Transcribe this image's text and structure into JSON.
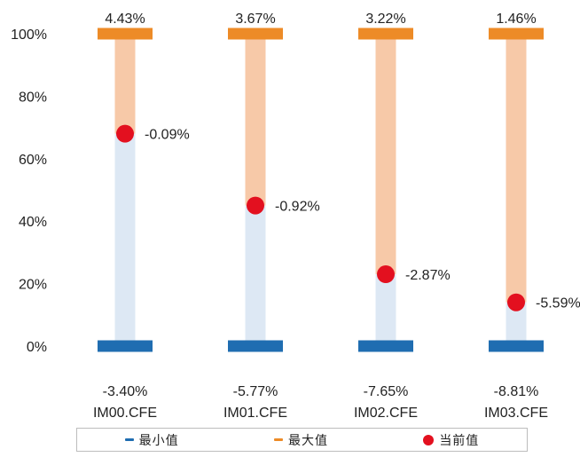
{
  "chart_data": {
    "type": "range-dot",
    "title": "",
    "xlabel": "",
    "ylabel": "",
    "ylim": [
      0,
      100
    ],
    "y_ticks": [
      "0%",
      "20%",
      "40%",
      "60%",
      "80%",
      "100%"
    ],
    "y_tick_values": [
      0,
      20,
      40,
      60,
      80,
      100
    ],
    "categories": [
      "IM00.CFE",
      "IM01.CFE",
      "IM02.CFE",
      "IM03.CFE"
    ],
    "series": [
      {
        "name": "最小值",
        "labels": [
          "-3.40%",
          "-5.77%",
          "-7.65%",
          "-8.81%"
        ],
        "position_pct": [
          0,
          0,
          0,
          0
        ]
      },
      {
        "name": "最大值",
        "labels": [
          "4.43%",
          "3.67%",
          "3.22%",
          "1.46%"
        ],
        "position_pct": [
          100,
          100,
          100,
          100
        ]
      },
      {
        "name": "当前值",
        "labels": [
          "-0.09%",
          "-0.92%",
          "-2.87%",
          "-5.59%"
        ],
        "position_pct": [
          68,
          45,
          23,
          14
        ]
      }
    ],
    "legend": [
      "最小值",
      "最大值",
      "当前值"
    ],
    "legend_position": "bottom",
    "grid": false,
    "colors": {
      "min": "#1f6db1",
      "max": "#ed8b27",
      "current": "#e3101f",
      "upper_fill": "#f7c9a8",
      "lower_fill": "#dde8f4",
      "axis_text": "#222222",
      "legend_border": "#bdbdbd"
    }
  }
}
